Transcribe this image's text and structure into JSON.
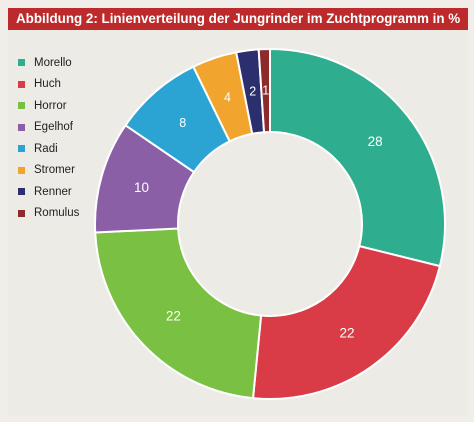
{
  "title": "Abbildung 2: Linienverteilung der Jungrinder im Zuchtprogramm in %",
  "chart_data": {
    "type": "pie",
    "variant": "donut",
    "title": "Abbildung 2: Linienverteilung der Jungrinder im Zuchtprogramm in %",
    "legend_position": "top-left",
    "series": [
      {
        "name": "Morello",
        "value": 28,
        "color": "#2fae8f"
      },
      {
        "name": "Huch",
        "value": 22,
        "color": "#d93c47"
      },
      {
        "name": "Horror",
        "value": 22,
        "color": "#7ac143"
      },
      {
        "name": "Egelhof",
        "value": 10,
        "color": "#8a5fa6"
      },
      {
        "name": "Radi",
        "value": 8,
        "color": "#2ba4d4"
      },
      {
        "name": "Stromer",
        "value": 4,
        "color": "#f2a52e"
      },
      {
        "name": "Renner",
        "value": 2,
        "color": "#2c2f6e"
      },
      {
        "name": "Romulus",
        "value": 1,
        "color": "#8c2a2c"
      }
    ]
  }
}
